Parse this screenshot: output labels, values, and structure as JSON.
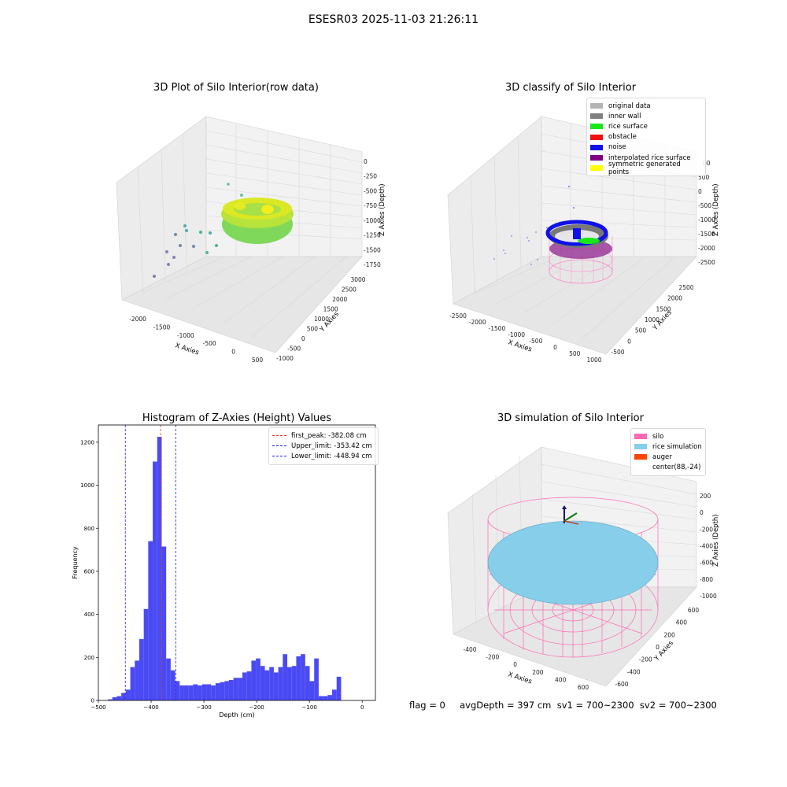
{
  "suptitle": "ESESR03 2025-11-03 21:26:11",
  "colors": {
    "hist_bar": "#4a4af5",
    "first_peak": "#e03030",
    "limits": "#2020d0",
    "pane": "#f2f2f2",
    "grid": "#dcdcdc"
  },
  "panel_raw": {
    "title": "3D Plot of Silo Interior(row data)",
    "x_axis_label": "X Axies",
    "y_axis_label": "Y Axies",
    "z_axis_label": "Z Axies (Depth)",
    "x_ticks": [
      "-2000",
      "-1500",
      "-1000",
      "-500",
      "0",
      "500"
    ],
    "y_ticks": [
      "-1000",
      "-500",
      "0",
      "500",
      "1000",
      "1500",
      "2000",
      "2500",
      "3000"
    ],
    "z_ticks": [
      "0",
      "-250",
      "-500",
      "-750",
      "-1000",
      "-1250",
      "-1500",
      "-1750"
    ]
  },
  "panel_classify": {
    "title": "3D classify of Silo Interior",
    "x_axis_label": "X Axies",
    "y_axis_label": "Y Axies",
    "z_axis_label": "Z Axies (Depth)",
    "x_ticks": [
      "-2500",
      "-2000",
      "-1500",
      "-1000",
      "-500",
      "0",
      "500",
      "1000"
    ],
    "y_ticks": [
      "-500",
      "0",
      "500",
      "1000",
      "1500",
      "2000",
      "2500"
    ],
    "z_ticks": [
      "500",
      "0",
      "-500",
      "-1000",
      "-1500",
      "-2000",
      "-2500"
    ],
    "z_ticks_hidden_top": "00",
    "legend": [
      {
        "label": "original data",
        "color": "#b3b3b3"
      },
      {
        "label": "inner wall",
        "color": "#808080"
      },
      {
        "label": "rice surface",
        "color": "#18e818"
      },
      {
        "label": "obstacle",
        "color": "#f01010"
      },
      {
        "label": "noise",
        "color": "#1010e8"
      },
      {
        "label": "interpolated rice surface",
        "color": "#800080"
      },
      {
        "label": "symmetric generated points",
        "color": "#ffff00"
      }
    ]
  },
  "panel_sim": {
    "title": "3D simulation of Silo Interior",
    "x_axis_label": "X Axies",
    "y_axis_label": "Y Axies",
    "z_axis_label": "Z Axies (Depth)",
    "x_ticks": [
      "-400",
      "-200",
      "0",
      "200",
      "400",
      "600"
    ],
    "y_ticks": [
      "-600",
      "-400",
      "-200",
      "0",
      "200",
      "400",
      "600"
    ],
    "z_ticks": [
      "200",
      "0",
      "-200",
      "-400",
      "-600",
      "-800",
      "-1000"
    ],
    "legend": [
      {
        "label": "silo",
        "color": "#ff69b4"
      },
      {
        "label": "rice simulation",
        "color": "#87ceeb"
      },
      {
        "label": "auger",
        "color": "#ff4500"
      },
      {
        "label": "center(88,-24)",
        "color": "#ffffff"
      }
    ]
  },
  "chart_data": {
    "type": "bar",
    "title": "Histogram of Z-Axies (Height) Values",
    "xlabel": "Depth (cm)",
    "ylabel": "Frequency",
    "xlim": [
      -500,
      25
    ],
    "ylim": [
      0,
      1280
    ],
    "x_ticks": [
      -500,
      -400,
      -300,
      -200,
      -100,
      0
    ],
    "y_ticks": [
      0,
      200,
      400,
      600,
      800,
      1000,
      1200
    ],
    "bin_width": 8.5,
    "bin_starts": [
      -482,
      -473.5,
      -465,
      -456.5,
      -448,
      -439.5,
      -431,
      -422.5,
      -414,
      -405.5,
      -397,
      -388.5,
      -380,
      -371.5,
      -363,
      -354.5,
      -346,
      -337.5,
      -329,
      -320.5,
      -312,
      -303.5,
      -295,
      -286.5,
      -278,
      -269.5,
      -261,
      -252.5,
      -244,
      -235.5,
      -227,
      -218.5,
      -210,
      -201.5,
      -193,
      -184.5,
      -176,
      -167.5,
      -159,
      -150.5,
      -142,
      -133.5,
      -125,
      -116.5,
      -108,
      -99.5,
      -91,
      -82.5,
      -74,
      -65.5,
      -57,
      -48.5,
      -40,
      -31.5,
      -23,
      -14.5,
      -6
    ],
    "values": [
      5,
      15,
      20,
      35,
      50,
      155,
      185,
      285,
      425,
      740,
      1110,
      1225,
      715,
      195,
      140,
      90,
      70,
      70,
      70,
      75,
      70,
      75,
      75,
      70,
      80,
      85,
      90,
      95,
      105,
      105,
      130,
      135,
      185,
      195,
      160,
      140,
      155,
      130,
      155,
      215,
      155,
      160,
      205,
      215,
      160,
      90,
      195,
      20,
      20,
      25,
      50,
      110,
      0,
      0,
      0,
      0,
      0
    ],
    "lines": [
      {
        "label": "first_peak: -382.08 cm",
        "x": -382.08,
        "color": "#e03030"
      },
      {
        "label": "Upper_limit: -353.42 cm",
        "x": -353.42,
        "color": "#2020d0"
      },
      {
        "label": "Lower_limit: -448.94 cm",
        "x": -448.94,
        "color": "#2020d0"
      }
    ],
    "legend_position": "top-right"
  },
  "status": {
    "text": "flag = 0     avgDepth = 397 cm  sv1 = 700~2300  sv2 = 700~2300"
  }
}
